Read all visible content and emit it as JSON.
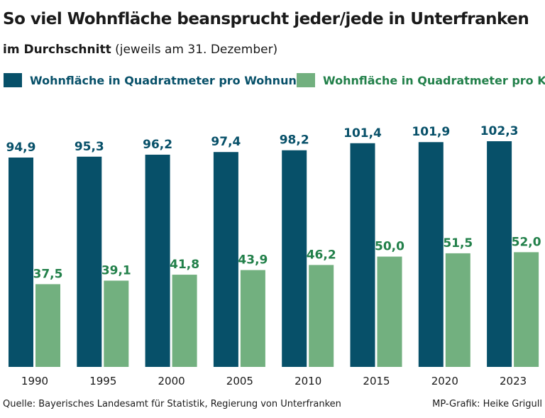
{
  "title": "So viel Wohnfläche beansprucht jeder/jede in Unterfranken",
  "subtitle_bold": "im Durchschnitt",
  "subtitle_rest": " (jeweils am 31. Dezember)",
  "source": "Quelle: Bayerisches Landesamt für Statistik, Regierung von Unterfranken",
  "credit": "MP-Grafik: Heike Grigull",
  "colors": {
    "dark": "#075069",
    "light": "#72b07f",
    "light_text": "#22804a"
  },
  "chart_data": {
    "type": "bar",
    "title": "So viel Wohnfläche beansprucht jeder/jede in Unterfranken",
    "xlabel": "",
    "ylabel": "",
    "ylim": [
      0,
      105
    ],
    "grid": false,
    "legend_position": "top",
    "categories": [
      "1990",
      "1995",
      "2000",
      "2005",
      "2010",
      "2015",
      "2020",
      "2023"
    ],
    "series": [
      {
        "name": "Wohnfläche in Quadratmeter pro Wohnung",
        "values": [
          94.9,
          95.3,
          96.2,
          97.4,
          98.2,
          101.4,
          101.9,
          102.3
        ],
        "labels": [
          "94,9",
          "95,3",
          "96,2",
          "97,4",
          "98,2",
          "101,4",
          "101,9",
          "102,3"
        ]
      },
      {
        "name": "Wohnfläche in Quadratmeter pro Kopf",
        "values": [
          37.5,
          39.1,
          41.8,
          43.9,
          46.2,
          50.0,
          51.5,
          52.0
        ],
        "labels": [
          "37,5",
          "39,1",
          "41,8",
          "43,9",
          "46,2",
          "50,0",
          "51,5",
          "52,0"
        ]
      }
    ]
  }
}
